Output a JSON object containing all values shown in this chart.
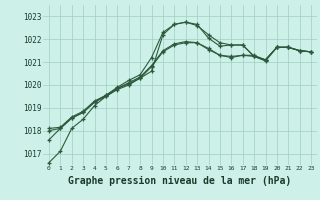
{
  "title": "Graphe pression niveau de la mer (hPa)",
  "background_color": "#cdf0e8",
  "grid_color": "#9ecfbf",
  "line_color": "#2d5a3d",
  "xlim": [
    -0.5,
    23.5
  ],
  "ylim": [
    1016.5,
    1023.5
  ],
  "yticks": [
    1017,
    1018,
    1019,
    1020,
    1021,
    1022,
    1023
  ],
  "xticks": [
    0,
    1,
    2,
    3,
    4,
    5,
    6,
    7,
    8,
    9,
    10,
    11,
    12,
    13,
    14,
    15,
    16,
    17,
    18,
    19,
    20,
    21,
    22,
    23
  ],
  "series": [
    [
      1016.6,
      1017.1,
      1018.1,
      1018.5,
      1019.1,
      1019.5,
      1019.8,
      1020.0,
      1020.3,
      1020.6,
      1022.2,
      1022.65,
      1022.75,
      1022.65,
      1022.05,
      1021.7,
      1021.75,
      1021.75,
      1021.25,
      1021.05,
      1021.65,
      1021.65,
      1021.5,
      1021.45
    ],
    [
      1017.6,
      1018.1,
      1018.55,
      1018.8,
      1019.25,
      1019.55,
      1019.9,
      1020.2,
      1020.45,
      1021.2,
      1022.3,
      1022.65,
      1022.75,
      1022.6,
      1022.2,
      1021.85,
      1021.75,
      1021.75,
      1021.25,
      1021.1,
      1021.65,
      1021.65,
      1021.5,
      1021.45
    ],
    [
      1018.0,
      1018.1,
      1018.55,
      1018.8,
      1019.25,
      1019.5,
      1019.85,
      1020.1,
      1020.35,
      1020.85,
      1021.5,
      1021.8,
      1021.9,
      1021.85,
      1021.6,
      1021.3,
      1021.25,
      1021.3,
      1021.25,
      1021.1,
      1021.65,
      1021.65,
      1021.5,
      1021.45
    ],
    [
      1018.1,
      1018.15,
      1018.6,
      1018.85,
      1019.3,
      1019.55,
      1019.85,
      1020.05,
      1020.3,
      1020.8,
      1021.45,
      1021.75,
      1021.85,
      1021.85,
      1021.55,
      1021.3,
      1021.2,
      1021.3,
      1021.3,
      1021.1,
      1021.65,
      1021.65,
      1021.5,
      1021.45
    ]
  ]
}
